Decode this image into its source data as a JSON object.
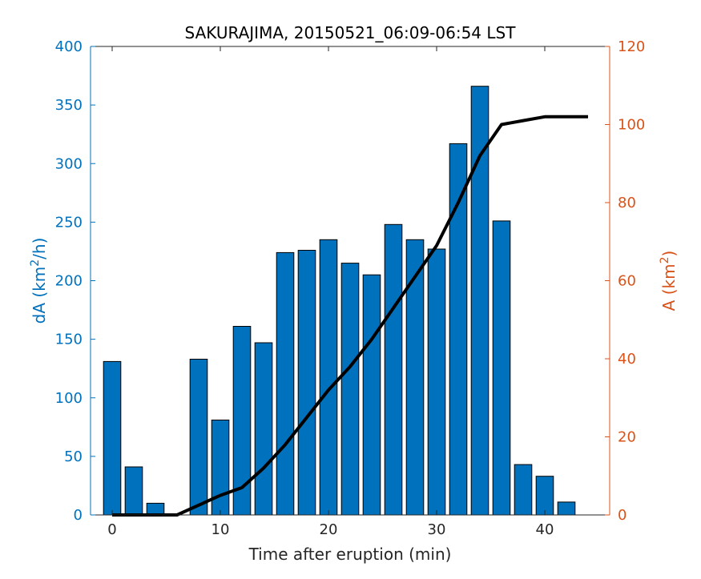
{
  "chart_data": {
    "type": "bar",
    "title": "SAKURAJIMA, 20150521_06:09-06:54 LST",
    "xlabel": "Time after eruption (min)",
    "ylabel_left": {
      "base": "dA (km",
      "sup": "2",
      "tail": "/h)"
    },
    "ylabel_right": {
      "base": "A (km",
      "sup": "2",
      "tail": ")"
    },
    "xlim": [
      -2,
      46
    ],
    "ylim_left": [
      0,
      400
    ],
    "ylim_right": [
      0,
      120
    ],
    "x_ticks": [
      0,
      10,
      20,
      30,
      40
    ],
    "y_left_ticks": [
      0,
      50,
      100,
      150,
      200,
      250,
      300,
      350,
      400
    ],
    "y_right_ticks": [
      0,
      20,
      40,
      60,
      80,
      100,
      120
    ],
    "bar_color": "#0072BD",
    "line_color": "#000000",
    "left_axis_color": "#0072BD",
    "right_axis_color": "#D95319",
    "grid": false,
    "series": [
      {
        "axis": "left",
        "kind": "bar",
        "x": [
          0,
          2,
          4,
          6,
          8,
          10,
          12,
          14,
          16,
          18,
          20,
          22,
          24,
          26,
          28,
          30,
          32,
          34,
          36,
          38,
          40,
          42
        ],
        "values": [
          131,
          41,
          10,
          0,
          133,
          81,
          161,
          147,
          224,
          226,
          235,
          215,
          205,
          248,
          235,
          227,
          317,
          366,
          251,
          43,
          33,
          11
        ]
      },
      {
        "axis": "right",
        "kind": "line",
        "x": [
          0,
          2,
          4,
          6,
          8,
          10,
          12,
          14,
          16,
          18,
          20,
          22,
          24,
          26,
          28,
          30,
          32,
          34,
          36,
          38,
          40,
          42,
          44
        ],
        "values": [
          0,
          0,
          0,
          0,
          2.5,
          5,
          7,
          12,
          18,
          25,
          32,
          38,
          45,
          53,
          61,
          69,
          80,
          92,
          100,
          101,
          102,
          102,
          102
        ]
      }
    ]
  }
}
